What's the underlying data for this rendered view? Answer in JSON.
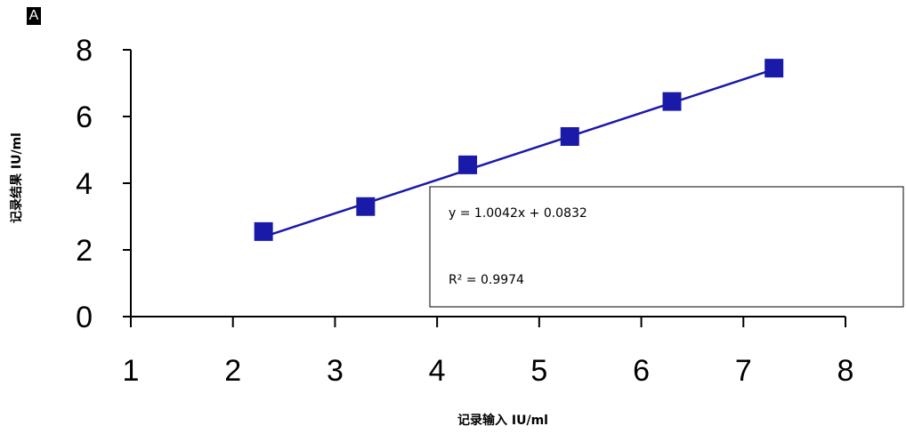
{
  "panel_label": "A",
  "chart_data": {
    "type": "scatter",
    "title": "",
    "xlabel": "记录输入 IU/ml",
    "ylabel": "记录结果 IU/ml",
    "xlim": [
      1,
      8
    ],
    "ylim": [
      0,
      8
    ],
    "x_ticks": [
      1,
      2,
      3,
      4,
      5,
      6,
      7,
      8
    ],
    "y_ticks": [
      0,
      2,
      4,
      6,
      8
    ],
    "grid": false,
    "series": [
      {
        "color": "#1a1aa8",
        "marker": "square",
        "x": [
          2.3,
          3.3,
          4.3,
          5.3,
          6.3,
          7.3
        ],
        "y": [
          2.55,
          3.3,
          4.55,
          5.4,
          6.45,
          7.45
        ]
      }
    ],
    "trendline": {
      "slope": 1.0042,
      "intercept": 0.0832,
      "x_range": [
        2.3,
        7.3
      ],
      "color": "#1a1aa8"
    },
    "annotation": {
      "equation": "y = 1.0042x + 0.0832",
      "r_squared": "R² = 0.9974"
    }
  }
}
